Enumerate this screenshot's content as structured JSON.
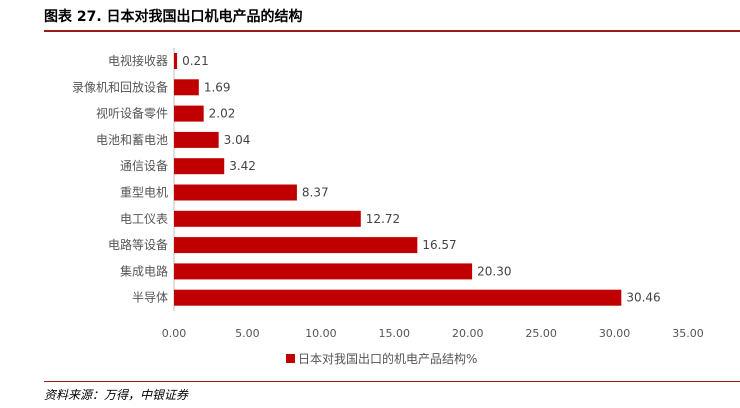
{
  "figure": {
    "title": "图表 27. 日本对我国出口机电产品的结构",
    "source": "资料来源：万得，中银证券"
  },
  "colors": {
    "bar": "#c00000",
    "rule": "#9b1b1b"
  },
  "chart_data": {
    "type": "bar",
    "orientation": "horizontal",
    "categories": [
      "电视接收器",
      "录像机和回放设备",
      "视听设备零件",
      "电池和蓄电池",
      "通信设备",
      "重型电机",
      "电工仪表",
      "电路等设备",
      "集成电路",
      "半导体"
    ],
    "series": [
      {
        "name": "日本对我国出口的机电产品结构%",
        "values": [
          0.21,
          1.69,
          2.02,
          3.04,
          3.42,
          8.37,
          12.72,
          16.57,
          20.3,
          30.46
        ]
      }
    ],
    "value_labels": [
      "0.21",
      "1.69",
      "2.02",
      "3.04",
      "3.42",
      "8.37",
      "12.72",
      "16.57",
      "20.30",
      "30.46"
    ],
    "xlim": [
      0,
      35
    ],
    "x_ticks": [
      "0.00",
      "5.00",
      "10.00",
      "15.00",
      "20.00",
      "25.00",
      "30.00",
      "35.00"
    ],
    "xlabel": "",
    "ylabel": "",
    "grid": false,
    "legend_position": "bottom-center"
  }
}
